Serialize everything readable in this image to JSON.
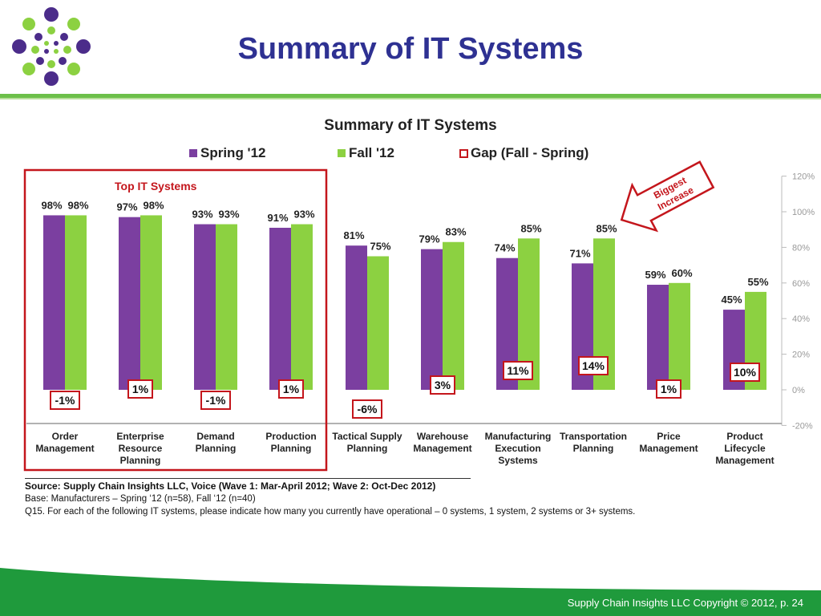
{
  "slide": {
    "title": "Summary of IT Systems",
    "footer": "Supply Chain Insights LLC Copyright © 2012, p. 24"
  },
  "colors": {
    "spring": "#7b3fa0",
    "fall": "#8cd141",
    "gap_border": "#c4161c",
    "title": "#2e3192",
    "brand_green": "#1f9a3c"
  },
  "chart_data": {
    "type": "bar",
    "title": "Summary of IT Systems",
    "categories": [
      [
        "Order",
        "Management"
      ],
      [
        "Enterprise",
        "Resource",
        "Planning"
      ],
      [
        "Demand",
        "Planning"
      ],
      [
        "Production",
        "Planning"
      ],
      [
        "Tactical Supply",
        "Planning"
      ],
      [
        "Warehouse",
        "Management"
      ],
      [
        "Manufacturing",
        "Execution",
        "Systems"
      ],
      [
        "Transportation",
        "Planning"
      ],
      [
        "Price",
        "Management"
      ],
      [
        "Product",
        "Lifecycle",
        "Management"
      ]
    ],
    "series": [
      {
        "name": "Spring '12",
        "values": [
          98,
          97,
          93,
          91,
          81,
          79,
          74,
          71,
          59,
          45
        ]
      },
      {
        "name": "Fall '12",
        "values": [
          98,
          98,
          93,
          93,
          75,
          83,
          85,
          85,
          60,
          55
        ]
      }
    ],
    "gap": {
      "name": "Gap (Fall - Spring)",
      "values": [
        "-1%",
        "1%",
        "-1%",
        "1%",
        "-6%",
        "3%",
        "11%",
        "14%",
        "1%",
        "10%"
      ]
    },
    "ylim": [
      -20,
      120
    ],
    "yticks": [
      "120%",
      "100%",
      "80%",
      "60%",
      "40%",
      "20%",
      "0%",
      "-20%"
    ],
    "legend_position": "top",
    "annotations": {
      "highlight_label": "Top IT Systems",
      "arrow_label": [
        "Biggest",
        "Increase"
      ]
    }
  },
  "source": {
    "line1": "Source:  Supply Chain Insights LLC, Voice (Wave 1: Mar-April 2012; Wave 2: Oct-Dec 2012)",
    "line2": "Base:  Manufacturers – Spring ‘12 (n=58), Fall ‘12 (n=40)",
    "line3": "Q15. For each of the following IT systems, please indicate how many you currently have operational – 0 systems, 1 system, 2 systems or 3+ systems."
  }
}
